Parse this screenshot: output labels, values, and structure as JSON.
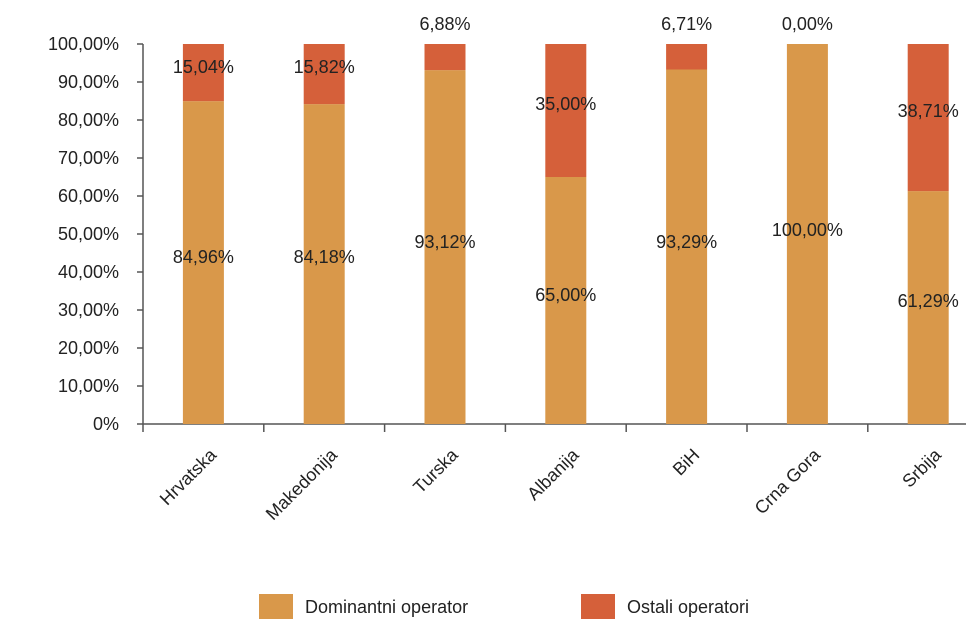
{
  "chart_data": {
    "type": "bar",
    "stacked": true,
    "categories": [
      "Hrvatska",
      "Makedonija",
      "Turska",
      "Albanija",
      "BiH",
      "Crna Gora",
      "Srbija"
    ],
    "series": [
      {
        "name": "Dominantni operator",
        "color": "#D9984A",
        "values": [
          84.96,
          84.18,
          93.12,
          65.0,
          93.29,
          100.0,
          61.29
        ],
        "labels": [
          "84,96%",
          "84,18%",
          "93,12%",
          "65,00%",
          "93,29%",
          "100,00%",
          "61,29%"
        ]
      },
      {
        "name": "Ostali operatori",
        "color": "#D5603A",
        "values": [
          15.04,
          15.82,
          6.88,
          35.0,
          6.71,
          0.0,
          38.71
        ],
        "labels": [
          "15,04%",
          "15,82%",
          "6,88%",
          "35,00%",
          "6,71%",
          "0,00%",
          "38,71%"
        ]
      }
    ],
    "ylim": [
      0,
      100
    ],
    "yticks": [
      "0%",
      "10,00%",
      "20,00%",
      "30,00%",
      "40,00%",
      "50,00%",
      "60,00%",
      "70,00%",
      "80,00%",
      "90,00%",
      "100,00%"
    ],
    "xlabel": "",
    "ylabel": "",
    "title": "",
    "grid": false,
    "legend_position": "bottom"
  }
}
